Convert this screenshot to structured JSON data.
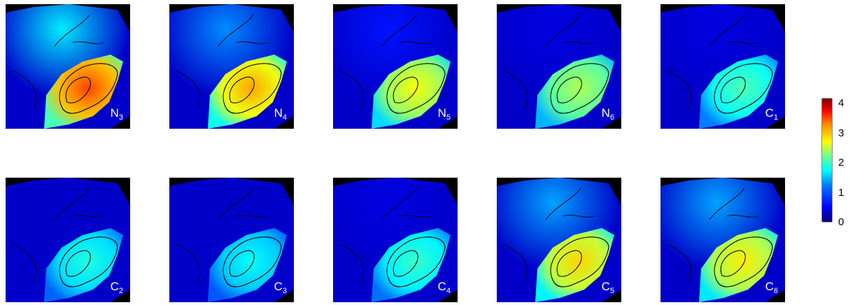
{
  "chart_data": {
    "type": "heatmap",
    "panels": [
      {
        "label": "N",
        "sub": "3",
        "level": 3.4,
        "outer_level": 1.5
      },
      {
        "label": "N",
        "sub": "4",
        "level": 3.0,
        "outer_level": 1.1
      },
      {
        "label": "N",
        "sub": "5",
        "level": 2.6,
        "outer_level": 0.6
      },
      {
        "label": "N",
        "sub": "6",
        "level": 2.3,
        "outer_level": 0.4
      },
      {
        "label": "C",
        "sub": "1",
        "level": 1.9,
        "outer_level": 0.4
      },
      {
        "label": "C",
        "sub": "2",
        "level": 1.7,
        "outer_level": 0.3
      },
      {
        "label": "C",
        "sub": "3",
        "level": 1.6,
        "outer_level": 0.3
      },
      {
        "label": "C",
        "sub": "4",
        "level": 1.8,
        "outer_level": 0.4
      },
      {
        "label": "C",
        "sub": "5",
        "level": 2.8,
        "outer_level": 1.2
      },
      {
        "label": "C",
        "sub": "6",
        "level": 2.7,
        "outer_level": 1.2
      }
    ],
    "colorbar": {
      "min": 0,
      "max": 4.2,
      "ticks": [
        "0",
        "1",
        "2",
        "3",
        "4"
      ],
      "tick_values": [
        0,
        1,
        2,
        3,
        4
      ],
      "colormap": "jet"
    },
    "colors": {
      "background": "#000000",
      "low": "#0000c8",
      "contour": "#000000"
    }
  }
}
